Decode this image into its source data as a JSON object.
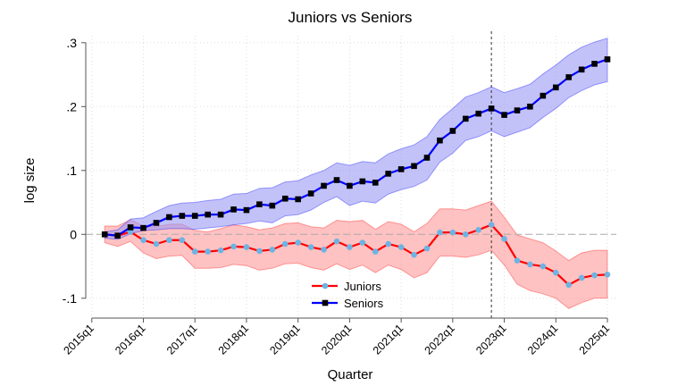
{
  "chart_data": {
    "type": "line",
    "title": "Juniors vs Seniors",
    "xlabel": "Quarter",
    "ylabel": "log size",
    "ylim": [
      -0.1,
      0.3
    ],
    "yticks": [
      -0.1,
      0,
      0.1,
      0.2,
      0.3
    ],
    "ytick_labels": [
      "-.1",
      "0",
      ".1",
      ".2",
      ".3"
    ],
    "xtick_labels": [
      "2015q1",
      "2016q1",
      "2017q1",
      "2018q1",
      "2019q1",
      "2020q1",
      "2021q1",
      "2022q1",
      "2023q1",
      "2024q1",
      "2025q1"
    ],
    "x_start": "2015q2",
    "x_end": "2025q1",
    "reference_line_y": 0,
    "vertical_line_x": "2022q4",
    "grid": true,
    "legend_position": "bottom-center",
    "series": [
      {
        "name": "Juniors",
        "color": "#ff0000",
        "marker_color": "#6cb4e4",
        "band_color": "#ff9a9a",
        "values": [
          0,
          -0.002,
          0.004,
          -0.009,
          -0.015,
          -0.009,
          -0.009,
          -0.027,
          -0.027,
          -0.025,
          -0.019,
          -0.02,
          -0.026,
          -0.024,
          -0.015,
          -0.013,
          -0.02,
          -0.024,
          -0.011,
          -0.02,
          -0.013,
          -0.027,
          -0.015,
          -0.02,
          -0.032,
          -0.022,
          0.003,
          0.003,
          0,
          0.007,
          0.015,
          -0.007,
          -0.041,
          -0.047,
          -0.05,
          -0.06,
          -0.079,
          -0.068,
          -0.064,
          -0.063
        ],
        "upper": [
          0.013,
          0.013,
          0.023,
          0.013,
          0.012,
          0.016,
          0.016,
          0.006,
          0.004,
          0.009,
          0.015,
          0.012,
          0.007,
          0.01,
          0.017,
          0.018,
          0.012,
          0.01,
          0.022,
          0.02,
          0.022,
          0.008,
          0.02,
          0.016,
          0.004,
          0.017,
          0.04,
          0.04,
          0.038,
          0.045,
          0.052,
          0.027,
          -0.001,
          -0.007,
          -0.013,
          -0.026,
          -0.041,
          -0.029,
          -0.025,
          -0.025
        ],
        "lower": [
          -0.013,
          -0.019,
          -0.011,
          -0.029,
          -0.038,
          -0.034,
          -0.033,
          -0.053,
          -0.053,
          -0.052,
          -0.047,
          -0.049,
          -0.056,
          -0.053,
          -0.046,
          -0.045,
          -0.052,
          -0.056,
          -0.046,
          -0.055,
          -0.048,
          -0.06,
          -0.048,
          -0.055,
          -0.068,
          -0.06,
          -0.034,
          -0.034,
          -0.036,
          -0.032,
          -0.025,
          -0.048,
          -0.078,
          -0.088,
          -0.093,
          -0.1,
          -0.116,
          -0.107,
          -0.1,
          -0.1
        ]
      },
      {
        "name": "Seniors",
        "color": "#0000ff",
        "marker_color": "#000000",
        "band_color": "#9a9af5",
        "values": [
          0,
          -0.002,
          0.011,
          0.01,
          0.018,
          0.027,
          0.029,
          0.029,
          0.031,
          0.031,
          0.039,
          0.038,
          0.047,
          0.045,
          0.056,
          0.055,
          0.064,
          0.076,
          0.085,
          0.076,
          0.083,
          0.081,
          0.095,
          0.102,
          0.107,
          0.12,
          0.147,
          0.162,
          0.181,
          0.189,
          0.197,
          0.187,
          0.194,
          0.2,
          0.217,
          0.23,
          0.246,
          0.258,
          0.267,
          0.274
        ],
        "upper": [
          0.004,
          0.007,
          0.024,
          0.026,
          0.036,
          0.045,
          0.049,
          0.05,
          0.053,
          0.055,
          0.063,
          0.064,
          0.072,
          0.073,
          0.082,
          0.084,
          0.093,
          0.1,
          0.112,
          0.108,
          0.114,
          0.112,
          0.126,
          0.134,
          0.14,
          0.153,
          0.18,
          0.197,
          0.215,
          0.222,
          0.231,
          0.222,
          0.228,
          0.235,
          0.251,
          0.265,
          0.281,
          0.293,
          0.301,
          0.307
        ],
        "lower": [
          -0.006,
          -0.008,
          0.001,
          0.006,
          0.007,
          0.009,
          0.009,
          0.008,
          0.01,
          0.012,
          0.015,
          0.017,
          0.021,
          0.018,
          0.029,
          0.031,
          0.038,
          0.05,
          0.059,
          0.045,
          0.052,
          0.049,
          0.063,
          0.07,
          0.075,
          0.085,
          0.113,
          0.127,
          0.147,
          0.153,
          0.162,
          0.153,
          0.16,
          0.167,
          0.183,
          0.197,
          0.214,
          0.225,
          0.234,
          0.239
        ]
      }
    ]
  }
}
